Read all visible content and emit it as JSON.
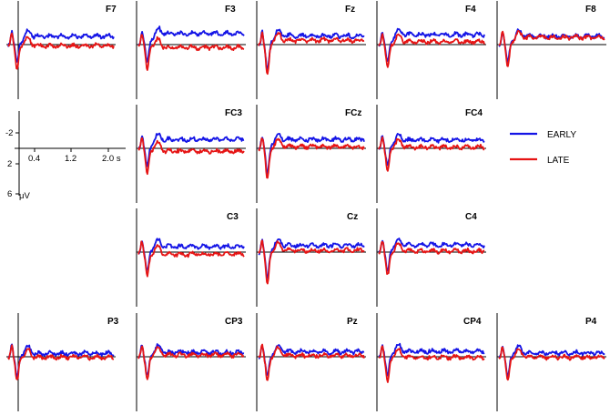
{
  "chart_data": {
    "type": "line",
    "title": "",
    "x_unit": "s",
    "y_unit": "μV",
    "y_inverted": true,
    "x_ticks": [
      "0.4",
      "1.2",
      "2.0"
    ],
    "y_ticks": [
      "-2",
      "2",
      "6"
    ],
    "x_range": [
      0,
      2.4
    ],
    "y_range": [
      -4,
      8
    ],
    "grid": false,
    "legend_position": "right",
    "series": [
      {
        "name": "EARLY",
        "color": "#1414e6"
      },
      {
        "name": "LATE",
        "color": "#e61414"
      }
    ],
    "electrodes": [
      {
        "name": "F7",
        "early_offset": -1.5,
        "late_offset": 0.2
      },
      {
        "name": "F3",
        "early_offset": -2.0,
        "late_offset": 0.5
      },
      {
        "name": "Fz",
        "early_offset": -1.6,
        "late_offset": -0.8
      },
      {
        "name": "F4",
        "early_offset": -1.8,
        "late_offset": -0.5
      },
      {
        "name": "F8",
        "early_offset": -1.5,
        "late_offset": -1.3
      },
      {
        "name": "FC3",
        "early_offset": -1.6,
        "late_offset": 0.5
      },
      {
        "name": "FCz",
        "early_offset": -1.6,
        "late_offset": -0.3
      },
      {
        "name": "FC4",
        "early_offset": -1.5,
        "late_offset": -0.2
      },
      {
        "name": "C3",
        "early_offset": -1.0,
        "late_offset": 0.4
      },
      {
        "name": "Cz",
        "early_offset": -1.2,
        "late_offset": -0.3
      },
      {
        "name": "C4",
        "early_offset": -1.3,
        "late_offset": -0.2
      },
      {
        "name": "P3",
        "early_offset": -0.6,
        "late_offset": 0.1
      },
      {
        "name": "CP3",
        "early_offset": -0.8,
        "late_offset": -0.3
      },
      {
        "name": "Pz",
        "early_offset": -0.9,
        "late_offset": -0.2
      },
      {
        "name": "CP4",
        "early_offset": -1.0,
        "late_offset": 0.1
      },
      {
        "name": "P4",
        "early_offset": -0.7,
        "late_offset": 0.1
      }
    ],
    "scale_bar": {
      "x_label": "2.0 s",
      "y_label": "μV"
    }
  }
}
